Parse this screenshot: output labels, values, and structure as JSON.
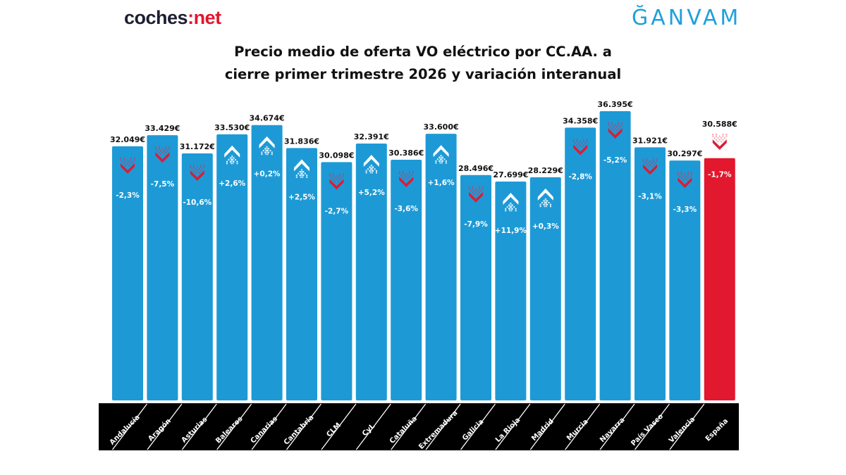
{
  "header": {
    "logo_left": {
      "main": "coches",
      "dot": ":",
      "suffix": "net"
    },
    "logo_right": "ĞANVAM"
  },
  "chart_data": {
    "type": "bar",
    "title": "Precio medio de oferta VO eléctrico por CC.AA. a cierre primer trimestre 2026 y variación interanual",
    "title_lines": [
      "Precio medio de oferta VO eléctrico por CC.AA. a",
      "cierre primer trimestre 2026 y variación interanual"
    ],
    "xlabel": "",
    "ylabel": "",
    "grid": false,
    "legend": "none",
    "categories": [
      "Andalucía",
      "Aragón",
      "Asturias",
      "Baleares",
      "Canarias",
      "Cantabria",
      "CLM",
      "CyL",
      "Cataluña",
      "Extremadura",
      "Galicia",
      "La Rioja",
      "Madrid",
      "Murcia",
      "Navarra",
      "País Vasco",
      "Valencia",
      "España"
    ],
    "series": [
      {
        "name": "Precio medio (€)",
        "values": [
          32049,
          33429,
          31172,
          33530,
          34674,
          31836,
          30098,
          32391,
          30386,
          33600,
          28496,
          27699,
          28229,
          34358,
          36395,
          31921,
          30297,
          30588
        ],
        "labels": [
          "32.049€",
          "33.429€",
          "31.172€",
          "33.530€",
          "34.674€",
          "31.836€",
          "30.098€",
          "32.391€",
          "30.386€",
          "33.600€",
          "28.496€",
          "27.699€",
          "28.229€",
          "34.358€",
          "36.395€",
          "31.921€",
          "30.297€",
          "30.588€"
        ]
      },
      {
        "name": "Variación interanual (%)",
        "values": [
          -2.3,
          -7.5,
          -10.6,
          2.6,
          0.2,
          2.5,
          -2.7,
          5.2,
          -3.6,
          1.6,
          -7.9,
          11.9,
          0.3,
          -2.8,
          -5.2,
          -3.1,
          -3.3,
          -1.7
        ],
        "labels": [
          "-2,3%",
          "-7,5%",
          "-10,6%",
          "+2,6%",
          "+0,2%",
          "+2,5%",
          "-2,7%",
          "+5,2%",
          "-3,6%",
          "+1,6%",
          "-7,9%",
          "+11,9%",
          "+0,3%",
          "-2,8%",
          "-5,2%",
          "-3,1%",
          "-3,3%",
          "-1,7%"
        ]
      }
    ],
    "highlight_category": "España",
    "colors": {
      "bar": "#1d9ad6",
      "highlight": "#e2182f",
      "up_icon": "#ffffff",
      "down_icon": "#d81e36",
      "axis_band": "#000000"
    }
  }
}
